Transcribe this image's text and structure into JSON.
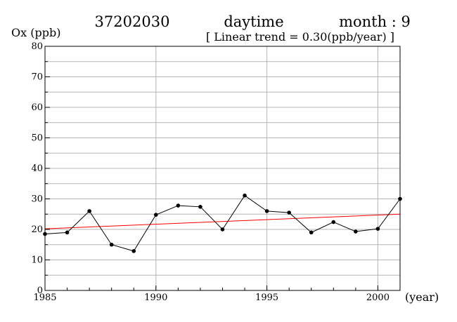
{
  "header": {
    "station": "37202030",
    "period": "daytime",
    "month": "month : 9",
    "trend_note": "[ Linear trend = 0.30(ppb/year) ]"
  },
  "chart_data": {
    "type": "line",
    "ylabel": "Ox (ppb)",
    "xlabel": "(year)",
    "xlim": [
      1985,
      2001
    ],
    "ylim": [
      0,
      80
    ],
    "x_ticks": [
      1985,
      1990,
      1995,
      2000
    ],
    "y_ticks": [
      0,
      10,
      20,
      30,
      40,
      50,
      60,
      70,
      80
    ],
    "grid": true,
    "colors": {
      "series": "#000000",
      "trend": "#ff0000",
      "grid": "#b4b4b4"
    },
    "series": [
      {
        "x": [
          1985,
          1986,
          1987,
          1988,
          1989,
          1990,
          1991,
          1992,
          1993,
          1994,
          1995,
          1996,
          1997,
          1998,
          1999,
          2000,
          2001
        ],
        "values": [
          18.5,
          19.0,
          26.0,
          15.0,
          12.9,
          24.8,
          27.8,
          27.4,
          20.0,
          31.1,
          26.0,
          25.5,
          19.0,
          22.4,
          19.3,
          20.2,
          30.0
        ]
      }
    ],
    "trend": {
      "x": [
        1985,
        2001
      ],
      "values": [
        20.2,
        25.0
      ]
    }
  }
}
